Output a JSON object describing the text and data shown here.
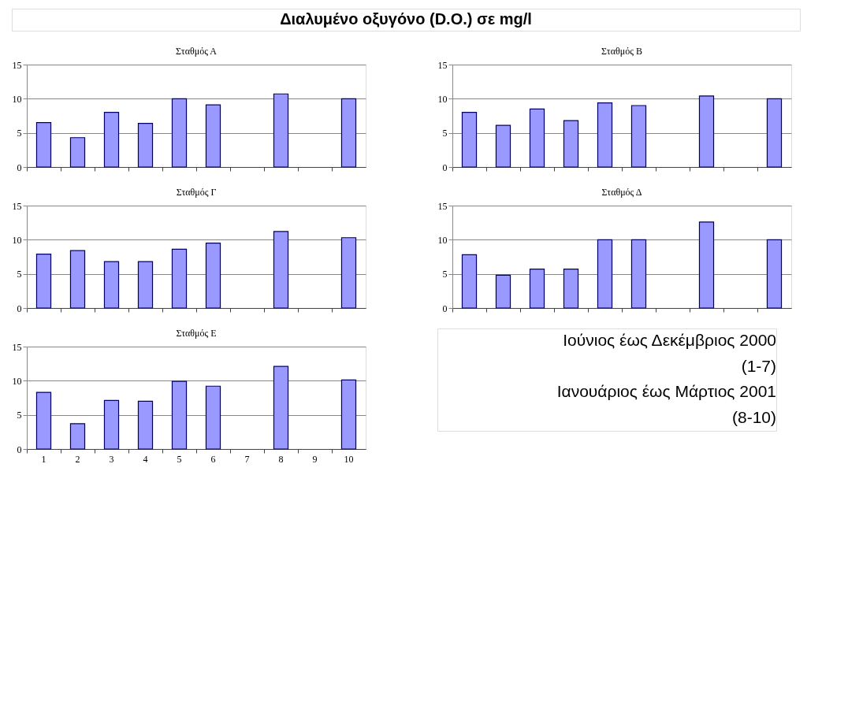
{
  "chart_data": [
    {
      "type": "bar",
      "title": "Σταθμός Α",
      "categories": [
        "1",
        "2",
        "3",
        "4",
        "5",
        "6",
        "7",
        "8",
        "9",
        "10"
      ],
      "values": [
        6.5,
        4.3,
        8.0,
        6.4,
        10.0,
        9.1,
        null,
        10.7,
        null,
        10.0
      ],
      "color": "#9999ff",
      "ylim": [
        0,
        15
      ],
      "yticks": [
        0,
        5,
        10,
        15
      ],
      "grid": "y",
      "tick_labels": "y"
    },
    {
      "type": "bar",
      "title": "Σταθμός Γ",
      "categories": [
        "1",
        "2",
        "3",
        "4",
        "5",
        "6",
        "7",
        "8",
        "9",
        "10"
      ],
      "values": [
        7.9,
        8.4,
        6.8,
        6.8,
        8.6,
        9.5,
        null,
        11.2,
        null,
        10.3
      ],
      "color": "#9999ff",
      "ylim": [
        0,
        15
      ],
      "yticks": [
        0,
        5,
        10,
        15
      ],
      "grid": "y",
      "tick_labels": "y"
    },
    {
      "type": "bar",
      "title": "Σταθμός Ε",
      "categories": [
        "1",
        "2",
        "3",
        "4",
        "5",
        "6",
        "7",
        "8",
        "9",
        "10"
      ],
      "values": [
        8.3,
        3.7,
        7.1,
        7.0,
        9.9,
        9.2,
        null,
        12.1,
        null,
        10.1
      ],
      "color": "#9999ff",
      "ylim": [
        0,
        15
      ],
      "yticks": [
        0,
        5,
        10,
        15
      ],
      "grid": "y"
    },
    {
      "type": "bar",
      "title": "Σταθμός Β",
      "categories": [
        null,
        null,
        null,
        null,
        null,
        null,
        null,
        null,
        null,
        null
      ],
      "values": [
        8.0,
        6.1,
        8.5,
        6.8,
        9.4,
        9.0,
        null,
        10.4,
        null,
        10.0
      ],
      "color": "#9999ff",
      "ylim": [
        0,
        15
      ],
      "yticks": [
        0,
        5,
        10,
        15
      ],
      "grid": "y",
      "tick_labels": "y"
    },
    {
      "type": "bar",
      "title": "Σταθμός Δ",
      "categories": [
        null,
        null,
        null,
        null,
        null,
        null,
        null,
        null,
        null,
        null
      ],
      "values": [
        7.8,
        4.8,
        5.7,
        5.7,
        10.0,
        10.0,
        null,
        12.6,
        null,
        10.0
      ],
      "color": "#9999ff",
      "ylim": [
        0,
        15
      ],
      "yticks": [
        0,
        5,
        10,
        15
      ],
      "grid": "y",
      "tick_labels": "y"
    },
    {
      "type": "other",
      "title": "Διαλυμένο οξυγόνο (D.O.) σε mg/l",
      "annotations": [
        "Ιούνιος έως Δεκέμβριος 2000",
        "(1-7)",
        "Ιανουάριος έως Μάρτιος 2001",
        "(8-10)"
      ]
    }
  ]
}
